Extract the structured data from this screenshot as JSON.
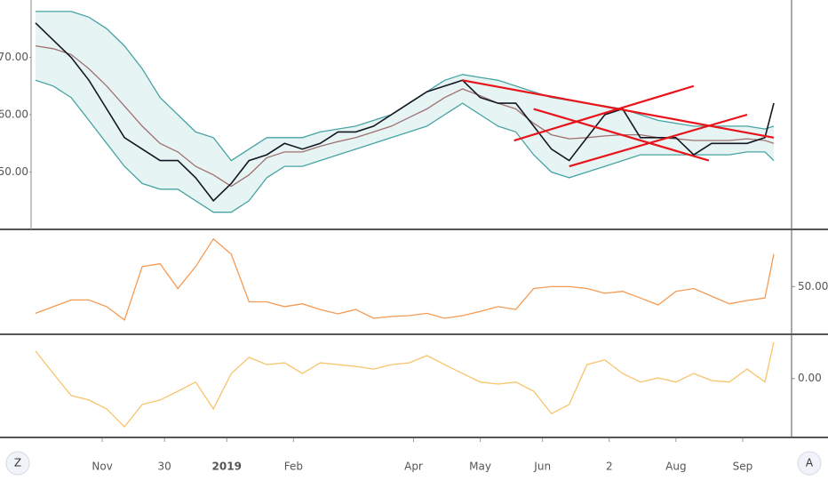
{
  "chart_data": [
    {
      "type": "line",
      "xlim": [
        0,
        171
      ],
      "xticks": [
        {
          "value": 16,
          "label": "Nov"
        },
        30,
        {
          "value": 44,
          "label": "2019",
          "bold": true
        },
        {
          "value": 59,
          "label": "Feb"
        },
        {
          "value": 86,
          "label": "Apr"
        },
        {
          "value": 101,
          "label": "May"
        },
        {
          "value": 115,
          "label": "Jun"
        },
        {
          "value": 130,
          "label": "2"
        },
        {
          "value": 145,
          "label": "Aug"
        },
        {
          "value": 160,
          "label": "Sep"
        }
      ],
      "ylim": [
        40,
        80
      ],
      "yticks": [
        {
          "value": 50,
          "label": "50.00"
        },
        {
          "value": 60,
          "label": "60.00"
        },
        {
          "value": 70,
          "label": "70.00"
        }
      ],
      "band_fill": "#e6f4f4",
      "x": [
        1,
        5,
        9,
        13,
        17,
        21,
        25,
        29,
        33,
        37,
        41,
        45,
        49,
        53,
        57,
        61,
        65,
        69,
        73,
        77,
        81,
        85,
        89,
        93,
        97,
        101,
        105,
        109,
        113,
        117,
        121,
        125,
        129,
        133,
        137,
        141,
        145,
        149,
        153,
        157,
        161,
        165,
        167
      ],
      "series": [
        {
          "color": "#48a3a3",
          "values": [
            78,
            78,
            78,
            77,
            75,
            72,
            68,
            63,
            60,
            57,
            56,
            52,
            54,
            56,
            56,
            56,
            57,
            57.5,
            58,
            59,
            60,
            62,
            64,
            66,
            67,
            66.5,
            66,
            65,
            64,
            63,
            62.5,
            62,
            61.5,
            61,
            60,
            59,
            58.5,
            58,
            58,
            58,
            58,
            57.5,
            58
          ]
        },
        {
          "color": "#48a3a3",
          "values": [
            66,
            65,
            63,
            59,
            55,
            51,
            48,
            47,
            47,
            45,
            43,
            43,
            45,
            49,
            51,
            51,
            52,
            53,
            54,
            55,
            56,
            57,
            58,
            60,
            62,
            60,
            58,
            57,
            53,
            50,
            49,
            50,
            51,
            52,
            53,
            53,
            53,
            53,
            53,
            53,
            53.5,
            53.5,
            52
          ]
        },
        {
          "color": "#a07070",
          "values": [
            72,
            71.5,
            70.5,
            68,
            65,
            61.5,
            58,
            55,
            53.5,
            51,
            49.5,
            47.5,
            49.5,
            52.5,
            53.5,
            53.5,
            54.5,
            55.3,
            56,
            57,
            58,
            59.5,
            61,
            63,
            64.5,
            63.3,
            62,
            61,
            58.5,
            56.5,
            55.8,
            56,
            56.3,
            56.5,
            56.5,
            56,
            55.8,
            55.5,
            55.5,
            55.5,
            55.8,
            55.5,
            55
          ]
        },
        {
          "color": "#131722",
          "values": [
            76,
            73,
            70,
            66,
            61,
            56,
            54,
            52,
            52,
            49,
            45,
            48,
            52,
            53,
            55,
            54,
            55,
            57,
            57,
            58,
            60,
            62,
            64,
            65,
            66,
            63,
            62,
            62,
            58,
            54,
            52,
            56,
            60,
            61,
            56,
            56,
            56,
            53,
            55,
            55,
            55,
            56,
            62
          ]
        }
      ],
      "trendlines": {
        "color": "#e8141a",
        "lines": [
          {
            "x": [
              97,
              167
            ],
            "y": [
              66,
              56
            ]
          },
          {
            "x": [
              108.6,
              149
            ],
            "y": [
              55.5,
              65
            ]
          },
          {
            "x": [
              121,
              161
            ],
            "y": [
              51,
              60
            ]
          },
          {
            "x": [
              113,
              152.4
            ],
            "y": [
              61,
              52
            ]
          }
        ]
      }
    },
    {
      "type": "line",
      "xlim": [
        0,
        171
      ],
      "ylim": [
        25,
        80
      ],
      "yticks": [
        {
          "value": 50,
          "label": "50.00"
        }
      ],
      "x": [
        1,
        5,
        9,
        13,
        17,
        21,
        25,
        29,
        33,
        37,
        41,
        45,
        49,
        53,
        57,
        61,
        65,
        69,
        73,
        77,
        81,
        85,
        89,
        93,
        97,
        101,
        105,
        109,
        113,
        117,
        121,
        125,
        129,
        133,
        137,
        141,
        145,
        149,
        153,
        157,
        161,
        165,
        167
      ],
      "series": [
        {
          "color": "#f59a52",
          "values": [
            36,
            39.5,
            43,
            43,
            39.5,
            32.5,
            60.5,
            62,
            49,
            60.5,
            75,
            67,
            42,
            42,
            39.5,
            41,
            38,
            35.7,
            38,
            33.4,
            34.3,
            34.8,
            36,
            33.4,
            34.8,
            37,
            39.5,
            38,
            49,
            50,
            50,
            49,
            46.5,
            47.5,
            44,
            40.4,
            47.5,
            49,
            45,
            41,
            42.7,
            44,
            67
          ]
        }
      ]
    },
    {
      "type": "line",
      "xlim": [
        0,
        171
      ],
      "ylim": [
        -20,
        15
      ],
      "yticks": [
        {
          "value": 0,
          "label": "0.00"
        }
      ],
      "x": [
        1,
        5,
        9,
        13,
        17,
        21,
        25,
        29,
        33,
        37,
        41,
        45,
        49,
        53,
        57,
        61,
        65,
        69,
        73,
        77,
        81,
        85,
        89,
        93,
        97,
        101,
        105,
        109,
        113,
        117,
        121,
        125,
        129,
        133,
        137,
        141,
        145,
        149,
        153,
        157,
        161,
        165,
        167
      ],
      "series": [
        {
          "color": "#f7c46c",
          "values": [
            9.3,
            1.7,
            -5.8,
            -7.3,
            -10.3,
            -16.4,
            -8.8,
            -7.3,
            -4.3,
            -1.2,
            -10.3,
            1.7,
            7.2,
            4.7,
            5.3,
            1.7,
            5.3,
            4.7,
            4.1,
            3.2,
            4.7,
            5.3,
            7.8,
            4.7,
            1.7,
            -1.2,
            -1.9,
            -1.2,
            -4.3,
            -11.9,
            -8.8,
            4.7,
            6.3,
            1.7,
            -1.2,
            0.2,
            -1.2,
            1.7,
            -0.7,
            -1.2,
            3.2,
            -1.2,
            12.3
          ]
        }
      ]
    }
  ],
  "toolbar": {
    "left": "Z",
    "right": "A"
  }
}
